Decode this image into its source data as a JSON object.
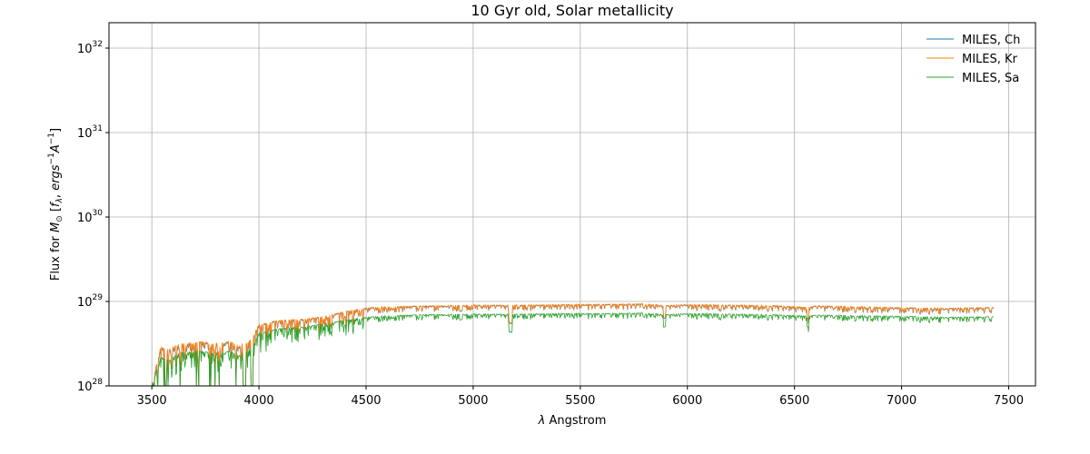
{
  "chart_data": {
    "type": "line",
    "title": "10 Gyr old, Solar metallicity",
    "xlabel": "λ Angstrom",
    "ylabel": "Flux for M⊙ [fλ, ergs⁻¹A⁻¹]",
    "xlim": [
      3300,
      7625
    ],
    "ylim": [
      1e+28,
      2e+32
    ],
    "yscale": "log",
    "grid": true,
    "legend_position": "top-right",
    "x_ticks": [
      3500,
      4000,
      4500,
      5000,
      5500,
      6000,
      6500,
      7000,
      7500
    ],
    "x_tick_labels": [
      "3500",
      "4000",
      "4500",
      "5000",
      "5500",
      "6000",
      "6500",
      "7000",
      "7500"
    ],
    "y_ticks": [
      1e+28,
      1e+29,
      1e+30,
      1e+31,
      1e+32
    ],
    "y_tick_exponents": [
      "28",
      "29",
      "30",
      "31",
      "32"
    ],
    "y_tick_base": "10",
    "wavelength_range": [
      3500,
      7430
    ],
    "series": [
      {
        "name": "MILES, Ch",
        "color": "#1f77b4",
        "x": [
          3500,
          3540,
          3580,
          3620,
          3660,
          3700,
          3740,
          3780,
          3820,
          3860,
          3900,
          3950,
          4000,
          4050,
          4100,
          4200,
          4300,
          4400,
          4500,
          4600,
          4800,
          5000,
          5200,
          5400,
          5600,
          5800,
          5900,
          6000,
          6200,
          6400,
          6563,
          6600,
          6800,
          7000,
          7200,
          7410
        ],
        "y": [
          1e+28,
          2.8e+28,
          2.6e+28,
          3e+28,
          3.1e+28,
          3.2e+28,
          3.3e+28,
          3e+28,
          3.2e+28,
          3.3e+28,
          3e+28,
          3.2e+28,
          5.2e+28,
          5.6e+28,
          5.9e+28,
          6.1e+28,
          6.5e+28,
          7.5e+28,
          8.3e+28,
          8.6e+28,
          8.8e+28,
          9e+28,
          9e+28,
          9.1e+28,
          9.2e+28,
          9.3e+28,
          8.9e+28,
          9.1e+28,
          9e+28,
          8.9e+28,
          8.4e+28,
          8.8e+28,
          8.6e+28,
          8.4e+28,
          8.2e+28,
          8.4e+28
        ]
      },
      {
        "name": "MILES, Kr",
        "color": "#ff7f0e",
        "x": [
          3500,
          3540,
          3580,
          3620,
          3660,
          3700,
          3740,
          3780,
          3820,
          3860,
          3900,
          3950,
          4000,
          4050,
          4100,
          4200,
          4300,
          4400,
          4500,
          4600,
          4800,
          5000,
          5200,
          5400,
          5600,
          5800,
          5900,
          6000,
          6200,
          6400,
          6563,
          6600,
          6800,
          7000,
          7200,
          7410
        ],
        "y": [
          1e+28,
          2.9e+28,
          2.7e+28,
          3.1e+28,
          3.2e+28,
          3.3e+28,
          3.4e+28,
          3.1e+28,
          3.3e+28,
          3.4e+28,
          3.1e+28,
          3.3e+28,
          5.3e+28,
          5.7e+28,
          6e+28,
          6.2e+28,
          6.6e+28,
          7.6e+28,
          8.4e+28,
          8.7e+28,
          8.9e+28,
          9.1e+28,
          9.1e+28,
          9.2e+28,
          9.3e+28,
          9.4e+28,
          9e+28,
          9.2e+28,
          9.1e+28,
          9e+28,
          8.5e+28,
          8.9e+28,
          8.7e+28,
          8.5e+28,
          8.3e+28,
          8.5e+28
        ]
      },
      {
        "name": "MILES, Sa",
        "color": "#2ca02c",
        "x": [
          3500,
          3540,
          3580,
          3620,
          3660,
          3700,
          3740,
          3780,
          3820,
          3860,
          3900,
          3950,
          4000,
          4050,
          4100,
          4200,
          4300,
          4400,
          4500,
          4600,
          4800,
          5000,
          5200,
          5400,
          5600,
          5800,
          5900,
          6000,
          6200,
          6400,
          6563,
          6600,
          6800,
          7000,
          7200,
          7410
        ],
        "y": [
          1e+28,
          2.2e+28,
          2e+28,
          2.4e+28,
          2.5e+28,
          2.6e+28,
          2.6e+28,
          2.4e+28,
          2.5e+28,
          2.6e+28,
          2.4e+28,
          2.6e+28,
          4.2e+28,
          4.5e+28,
          4.8e+28,
          5e+28,
          5.4e+28,
          6e+28,
          6.5e+28,
          6.8e+28,
          7e+28,
          7.1e+28,
          7.1e+28,
          7.2e+28,
          7.2e+28,
          7.3e+28,
          7e+28,
          7.2e+28,
          7.1e+28,
          7e+28,
          6.7e+28,
          6.9e+28,
          6.8e+28,
          6.7e+28,
          6.5e+28,
          6.6e+28
        ]
      }
    ]
  }
}
